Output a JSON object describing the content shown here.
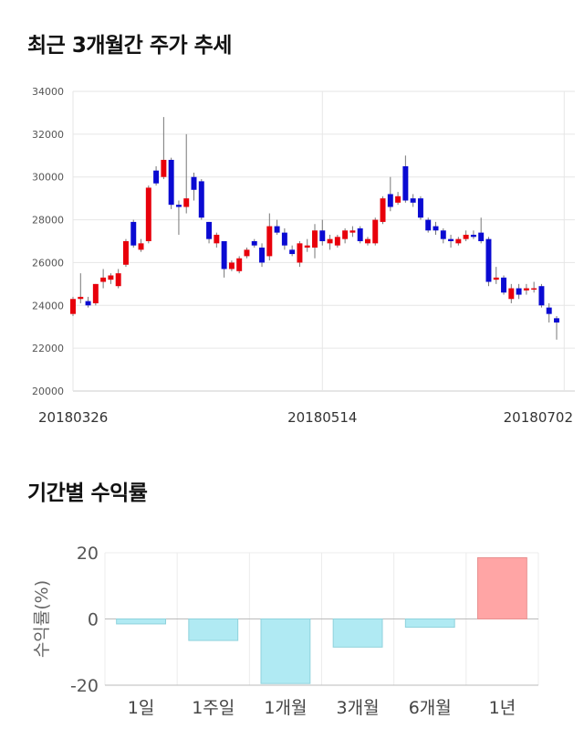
{
  "sections": {
    "price_title": "최근 3개월간 주가 추세",
    "return_title": "기간별 수익률"
  },
  "colors": {
    "up": "#e8000b",
    "down": "#0a0ad2",
    "positive_bar": "#ffa5a5",
    "negative_bar": "#b0eaf3",
    "grid": "#e6e6e6"
  },
  "chart_data": [
    {
      "type": "candlestick",
      "title": "최근 3개월간 주가 추세",
      "ylim": [
        20000,
        34000
      ],
      "yticks": [
        "20000",
        "22000",
        "24000",
        "26000",
        "28000",
        "30000",
        "32000",
        "34000"
      ],
      "xticks": [
        {
          "label": "20180326",
          "index": 0
        },
        {
          "label": "20180514",
          "index": 33
        },
        {
          "label": "20180702",
          "index": 65
        }
      ],
      "candles": [
        [
          23600,
          24300,
          24400,
          23500
        ],
        [
          24300,
          24400,
          25500,
          24100
        ],
        [
          24200,
          24000,
          24400,
          23900
        ],
        [
          24100,
          25000,
          25000,
          24000
        ],
        [
          25100,
          25300,
          25700,
          24800
        ],
        [
          25200,
          25400,
          25500,
          25000
        ],
        [
          24900,
          25500,
          25700,
          24800
        ],
        [
          25900,
          27000,
          27100,
          25800
        ],
        [
          27900,
          26800,
          28000,
          26700
        ],
        [
          26600,
          26900,
          27100,
          26500
        ],
        [
          27000,
          29500,
          29600,
          26900
        ],
        [
          30300,
          29700,
          30500,
          29600
        ],
        [
          30000,
          30800,
          32800,
          29900
        ],
        [
          30800,
          28700,
          30900,
          28500
        ],
        [
          28700,
          28600,
          28900,
          27300
        ],
        [
          28600,
          29000,
          32000,
          28300
        ],
        [
          30000,
          29400,
          30200,
          28900
        ],
        [
          29800,
          28100,
          29900,
          28000
        ],
        [
          27900,
          27100,
          27900,
          26900
        ],
        [
          26900,
          27300,
          27400,
          26700
        ],
        [
          27000,
          25700,
          27000,
          25300
        ],
        [
          25700,
          26000,
          26100,
          25600
        ],
        [
          25600,
          26200,
          26300,
          25500
        ],
        [
          26300,
          26600,
          26700,
          26200
        ],
        [
          27000,
          26800,
          27100,
          26700
        ],
        [
          26700,
          26000,
          26900,
          25800
        ],
        [
          26300,
          27700,
          28300,
          26100
        ],
        [
          27700,
          27400,
          28000,
          27300
        ],
        [
          27400,
          26800,
          27600,
          26600
        ],
        [
          26600,
          26400,
          26800,
          26300
        ],
        [
          26000,
          26900,
          27000,
          25800
        ],
        [
          26700,
          26800,
          27100,
          26500
        ],
        [
          26700,
          27500,
          27800,
          26200
        ],
        [
          27500,
          27000,
          28000,
          26800
        ],
        [
          26900,
          27100,
          27300,
          26600
        ],
        [
          26800,
          27200,
          27300,
          26700
        ],
        [
          27100,
          27500,
          27600,
          26900
        ],
        [
          27400,
          27500,
          27700,
          27200
        ],
        [
          27600,
          27000,
          27700,
          26900
        ],
        [
          26900,
          27100,
          27200,
          26800
        ],
        [
          26900,
          28000,
          28100,
          26800
        ],
        [
          27900,
          29000,
          29100,
          27800
        ],
        [
          29200,
          28600,
          30000,
          28400
        ],
        [
          28800,
          29100,
          29300,
          28700
        ],
        [
          30500,
          28900,
          31000,
          28800
        ],
        [
          29000,
          28800,
          29200,
          28600
        ],
        [
          29000,
          28100,
          29100,
          28000
        ],
        [
          28000,
          27500,
          28100,
          27400
        ],
        [
          27700,
          27500,
          27900,
          27300
        ],
        [
          27500,
          27100,
          27600,
          26900
        ],
        [
          27100,
          27000,
          27300,
          26700
        ],
        [
          26900,
          27100,
          27200,
          26800
        ],
        [
          27100,
          27300,
          27500,
          27000
        ],
        [
          27300,
          27200,
          27500,
          27100
        ],
        [
          27400,
          27000,
          28100,
          26900
        ],
        [
          27100,
          25100,
          27200,
          24900
        ],
        [
          25200,
          25300,
          25800,
          25000
        ],
        [
          25300,
          24600,
          25400,
          24500
        ],
        [
          24300,
          24800,
          25000,
          24100
        ],
        [
          24800,
          24500,
          25000,
          24300
        ],
        [
          24700,
          24800,
          25000,
          24500
        ],
        [
          24800,
          24800,
          25100,
          24600
        ],
        [
          24900,
          24000,
          25000,
          23900
        ],
        [
          23900,
          23600,
          24100,
          23200
        ],
        [
          23400,
          23200,
          23500,
          22400
        ]
      ]
    },
    {
      "type": "bar",
      "title": "기간별 수익률",
      "categories": [
        "1일",
        "1주일",
        "1개월",
        "3개월",
        "6개월",
        "1년"
      ],
      "values": [
        -1.5,
        -6.5,
        -19.5,
        -8.5,
        -2.5,
        18.5
      ],
      "ylabel": "수익률(%)",
      "ylim": [
        -20,
        20
      ],
      "yticks": [
        "-20",
        "0",
        "20"
      ]
    }
  ]
}
